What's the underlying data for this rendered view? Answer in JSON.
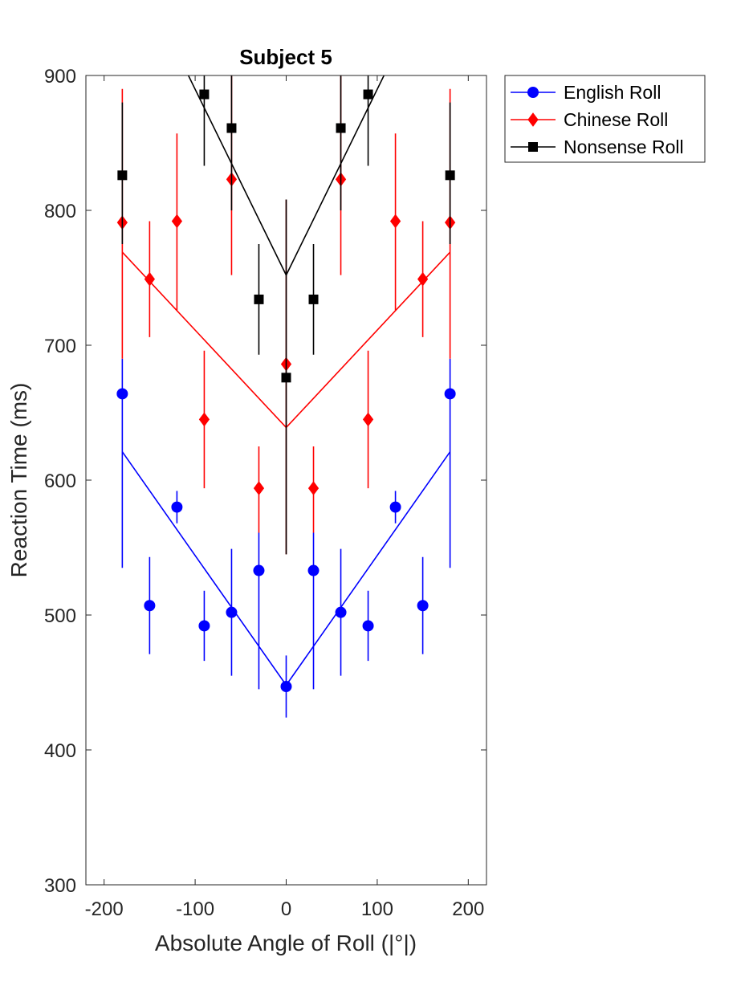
{
  "chart_data": {
    "type": "line",
    "title": "Subject 5",
    "xlabel": "Absolute Angle of Roll (|°|)",
    "ylabel": "Reaction Time (ms)",
    "xlim": [
      -220,
      220
    ],
    "ylim": [
      300,
      900
    ],
    "xticks": [
      -200,
      -100,
      0,
      100,
      200
    ],
    "xtick_labels": [
      "-200",
      "-100",
      "0",
      "100",
      "200"
    ],
    "yticks": [
      300,
      400,
      500,
      600,
      700,
      800,
      900
    ],
    "ytick_labels": [
      "300",
      "400",
      "500",
      "600",
      "700",
      "800",
      "900"
    ],
    "grid": false,
    "legend_position": "outside-top-right",
    "x": [
      -180,
      -150,
      -120,
      -90,
      -60,
      -30,
      0,
      30,
      60,
      90,
      120,
      150,
      180
    ],
    "series": [
      {
        "name": "English Roll",
        "color": "#0000ff",
        "marker": "circle",
        "means": [
          664,
          507,
          580,
          492,
          502,
          533,
          447,
          533,
          502,
          492,
          580,
          507,
          664
        ],
        "error_low": [
          535,
          471,
          568,
          466,
          455,
          445,
          424,
          445,
          455,
          466,
          568,
          471,
          535
        ],
        "error_high": [
          690,
          543,
          592,
          518,
          549,
          561,
          470,
          561,
          549,
          518,
          592,
          543,
          690
        ],
        "fit_line": {
          "x": [
            -180,
            0,
            180
          ],
          "y": [
            621,
            448,
            621
          ]
        }
      },
      {
        "name": "Chinese Roll",
        "color": "#ff0000",
        "marker": "diamond",
        "means": [
          791,
          749,
          792,
          645,
          823,
          594,
          686,
          594,
          823,
          645,
          792,
          749,
          791
        ],
        "error_low": [
          690,
          706,
          726,
          594,
          752,
          561,
          545,
          561,
          752,
          594,
          726,
          706,
          690
        ],
        "error_high": [
          890,
          792,
          857,
          696,
          900,
          625,
          808,
          625,
          900,
          696,
          857,
          792,
          890
        ],
        "fit_line": {
          "x": [
            -180,
            0,
            180
          ],
          "y": [
            769,
            639,
            769
          ]
        }
      },
      {
        "name": "Nonsense Roll",
        "color": "#000000",
        "marker": "square",
        "means": [
          826,
          null,
          null,
          886,
          861,
          734,
          676,
          734,
          861,
          886,
          null,
          null,
          826
        ],
        "error_low": [
          775,
          null,
          null,
          833,
          800,
          693,
          545,
          693,
          800,
          833,
          null,
          null,
          775
        ],
        "error_high": [
          880,
          null,
          null,
          940,
          920,
          775,
          808,
          775,
          920,
          940,
          null,
          null,
          880
        ],
        "fit_line": {
          "x": [
            -180,
            0,
            180
          ],
          "y": [
            1000,
            752,
            1000
          ]
        }
      }
    ]
  }
}
